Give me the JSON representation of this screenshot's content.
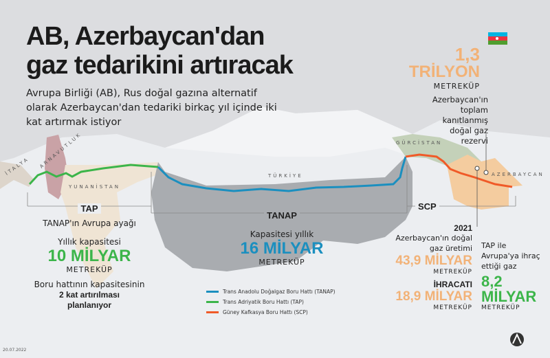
{
  "title_lines": [
    "AB, Azerbaycan'dan",
    "gaz tedarikini artıracak"
  ],
  "subtitle": "Avrupa Birliği (AB), Rus doğal gazına alternatif olarak Azerbaycan'dan tedariki birkaç yıl içinde iki kat artırmak istiyor",
  "countries": {
    "italy": "İTALYA",
    "albania": "ARNAVUTLUK",
    "greece": "YUNANİSTAN",
    "turkey": "TÜRKİYE",
    "georgia": "GÜRCİSTAN",
    "azerbaijan": "AZERBAYCAN"
  },
  "reserve": {
    "value": "1,3",
    "unit": "TRİLYON",
    "unit2": "METREKÜP",
    "desc": "Azerbaycan'ın toplam kanıtlanmış doğal gaz rezervi",
    "flag_icon": "azerbaijan-flag"
  },
  "tap": {
    "name": "TAP",
    "desc": "TANAP'ın Avrupa ayağı",
    "cap_label": "Yıllık kapasitesi",
    "cap_value": "10 MİLYAR",
    "unit": "METREKÜP",
    "note1": "Boru hattının kapasitesinin",
    "note2": "2 kat artırılması",
    "note3": "planlanıyor"
  },
  "tanap": {
    "name": "TANAP",
    "cap_label": "Kapasitesi yıllık",
    "cap_value": "16 MİLYAR",
    "unit": "METREKÜP"
  },
  "scp": {
    "name": "SCP",
    "year": "2021",
    "prod_label": "Azerbaycan'ın doğal gaz üretimi",
    "prod_value": "43,9 MİLYAR",
    "unit": "METREKÜP",
    "export_label": "İHRACATI",
    "export_value": "18,9 MİLYAR"
  },
  "tap_export": {
    "label": "TAP ile Avrupa'ya ihraç ettiği gaz",
    "value1": "8,2",
    "value2": "MİLYAR",
    "unit": "METREKÜP"
  },
  "legend": [
    {
      "label": "Trans Anadolu Doğalgaz Boru Hattı (TANAP)",
      "color": "#1b8fbf"
    },
    {
      "label": "Trans Adriyatik Boru Hattı (TAP)",
      "color": "#3cb54a"
    },
    {
      "label": "Güney Kafkasya Boru Hattı (SCP)",
      "color": "#f05a28"
    }
  ],
  "colors": {
    "tap": "#3cb54a",
    "tanap": "#1b8fbf",
    "scp": "#f05a28",
    "reserve": "#f2b277"
  },
  "date": "20.07.2022",
  "logo": "AA"
}
